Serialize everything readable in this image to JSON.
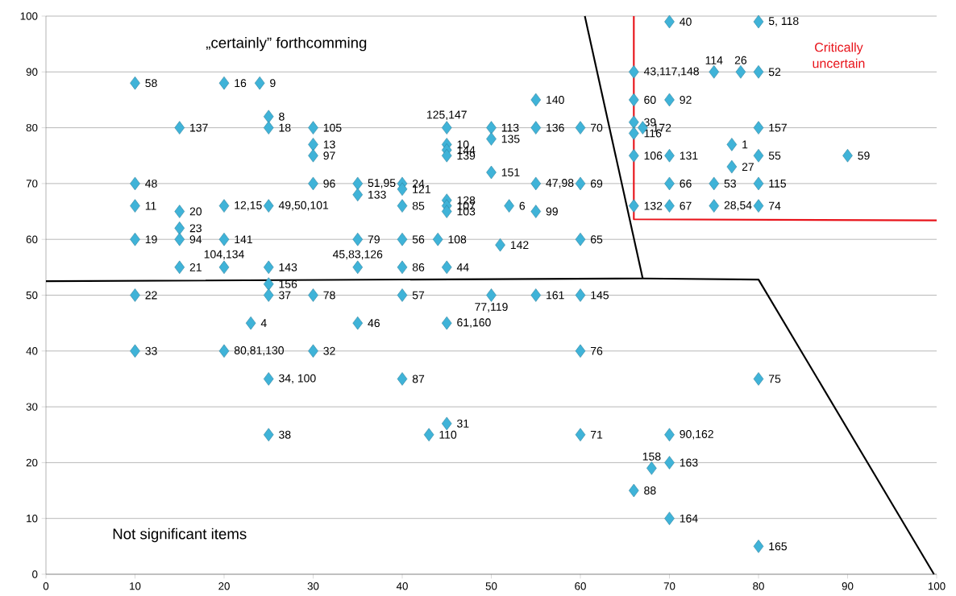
{
  "chart_data": {
    "type": "scatter",
    "xlim": [
      0,
      100
    ],
    "ylim": [
      0,
      100
    ],
    "xticks": [
      0,
      10,
      20,
      30,
      40,
      50,
      60,
      70,
      80,
      90,
      100
    ],
    "yticks": [
      0,
      10,
      20,
      30,
      40,
      50,
      60,
      70,
      80,
      90,
      100
    ],
    "grid": "y",
    "marker": "diamond",
    "series": [
      {
        "color": "#3fb3d8",
        "x": [
          70,
          80,
          66,
          75,
          78,
          80,
          66,
          70,
          66,
          67,
          66,
          80,
          77,
          77,
          66,
          70,
          80,
          90,
          70,
          75,
          80,
          66,
          70,
          75,
          80,
          10,
          20,
          24,
          25,
          25,
          15,
          30,
          30,
          30,
          10,
          30,
          35,
          35,
          40,
          40,
          10,
          15,
          20,
          25,
          15,
          10,
          15,
          20,
          35,
          40,
          44,
          51,
          60,
          15,
          20,
          25,
          25,
          35,
          40,
          45,
          40,
          45,
          45,
          45,
          52,
          55,
          50,
          55,
          60,
          45,
          50,
          50,
          55,
          60,
          55,
          45,
          45,
          45,
          10,
          25,
          30,
          40,
          50,
          55,
          60,
          23,
          35,
          45,
          10,
          20,
          30,
          60,
          25,
          40,
          80,
          45,
          43,
          25,
          60,
          70,
          70,
          68,
          66,
          70,
          80
        ],
        "values": [
          99,
          99,
          90,
          90,
          90,
          90,
          85,
          85,
          81,
          80,
          79,
          80,
          77,
          73,
          75,
          75,
          75,
          75,
          70,
          70,
          70,
          66,
          66,
          66,
          66,
          88,
          88,
          88,
          82,
          80,
          80,
          80,
          77,
          75,
          70,
          70,
          70,
          68,
          70,
          69,
          66,
          65,
          66,
          66,
          62,
          60,
          60,
          60,
          60,
          60,
          60,
          59,
          60,
          55,
          55,
          55,
          52,
          55,
          55,
          55,
          66,
          67,
          66,
          65,
          66,
          65,
          72,
          70,
          70,
          80,
          80,
          78,
          80,
          80,
          85,
          77,
          76,
          75,
          50,
          50,
          50,
          50,
          50,
          50,
          50,
          45,
          45,
          45,
          40,
          40,
          40,
          40,
          35,
          35,
          35,
          27,
          25,
          25,
          25,
          25,
          20,
          19,
          15,
          10,
          5
        ]
      },
      {
        "type": "line",
        "marker": "none",
        "color": "#000000",
        "x": [
          0,
          67,
          80,
          99.7
        ],
        "values": [
          52.5,
          53,
          52.8,
          0
        ]
      },
      {
        "type": "line",
        "marker": "none",
        "color": "#000000",
        "x": [
          60.5,
          67
        ],
        "values": [
          100,
          53
        ]
      },
      {
        "type": "line",
        "marker": "none",
        "color": "#e8141b",
        "x": [
          66,
          66,
          100
        ],
        "values": [
          100,
          63.6,
          63.4
        ]
      }
    ],
    "annotations": [
      "„certainly” forthcomming",
      "Not significant items",
      "Critically uncertain",
      {
        "text": "40",
        "x": 70,
        "y": 99
      },
      {
        "text": "5, 118",
        "x": 80,
        "y": 99
      },
      {
        "text": "43,117,148",
        "x": 66,
        "y": 90
      },
      {
        "text": "114",
        "x": 75,
        "y": 90
      },
      {
        "text": "26",
        "x": 78,
        "y": 90
      },
      {
        "text": "52",
        "x": 80,
        "y": 90
      },
      {
        "text": "60",
        "x": 66,
        "y": 85
      },
      {
        "text": "92",
        "x": 70,
        "y": 85
      },
      {
        "text": "39",
        "x": 66,
        "y": 81
      },
      {
        "text": "172",
        "x": 67,
        "y": 80
      },
      {
        "text": "116",
        "x": 66,
        "y": 79
      },
      {
        "text": "157",
        "x": 80,
        "y": 80
      },
      {
        "text": "1",
        "x": 77,
        "y": 77
      },
      {
        "text": "27",
        "x": 77,
        "y": 73
      },
      {
        "text": "106",
        "x": 66,
        "y": 75
      },
      {
        "text": "131",
        "x": 70,
        "y": 75
      },
      {
        "text": "55",
        "x": 80,
        "y": 75
      },
      {
        "text": "59",
        "x": 90,
        "y": 75
      },
      {
        "text": "66",
        "x": 70,
        "y": 70
      },
      {
        "text": "53",
        "x": 75,
        "y": 70
      },
      {
        "text": "115",
        "x": 80,
        "y": 70
      },
      {
        "text": "132",
        "x": 66,
        "y": 66
      },
      {
        "text": "67",
        "x": 70,
        "y": 66
      },
      {
        "text": "28,54",
        "x": 75,
        "y": 66
      },
      {
        "text": "74",
        "x": 80,
        "y": 66
      },
      {
        "text": "58",
        "x": 10,
        "y": 88
      },
      {
        "text": "16",
        "x": 20,
        "y": 88
      },
      {
        "text": "9",
        "x": 24,
        "y": 88
      },
      {
        "text": "8",
        "x": 25,
        "y": 82
      },
      {
        "text": "18",
        "x": 25,
        "y": 80
      },
      {
        "text": "137",
        "x": 15,
        "y": 80
      },
      {
        "text": "105",
        "x": 30,
        "y": 80
      },
      {
        "text": "13",
        "x": 30,
        "y": 77
      },
      {
        "text": "97",
        "x": 30,
        "y": 75
      },
      {
        "text": "48",
        "x": 10,
        "y": 70
      },
      {
        "text": "96",
        "x": 30,
        "y": 70
      },
      {
        "text": "51,95",
        "x": 35,
        "y": 70
      },
      {
        "text": "133",
        "x": 35,
        "y": 68
      },
      {
        "text": "24",
        "x": 40,
        "y": 70
      },
      {
        "text": "121",
        "x": 40,
        "y": 69
      },
      {
        "text": "11",
        "x": 10,
        "y": 66
      },
      {
        "text": "20",
        "x": 15,
        "y": 65
      },
      {
        "text": "12,15",
        "x": 20,
        "y": 66
      },
      {
        "text": "49,50,101",
        "x": 25,
        "y": 66
      },
      {
        "text": "23",
        "x": 15,
        "y": 62
      },
      {
        "text": "19",
        "x": 10,
        "y": 60
      },
      {
        "text": "94",
        "x": 15,
        "y": 60
      },
      {
        "text": "141",
        "x": 20,
        "y": 60
      },
      {
        "text": "79",
        "x": 35,
        "y": 60
      },
      {
        "text": "56",
        "x": 40,
        "y": 60
      },
      {
        "text": "108",
        "x": 44,
        "y": 60
      },
      {
        "text": "142",
        "x": 51,
        "y": 59
      },
      {
        "text": "65",
        "x": 60,
        "y": 60
      },
      {
        "text": "21",
        "x": 15,
        "y": 55
      },
      {
        "text": "104,134",
        "x": 20,
        "y": 55
      },
      {
        "text": "143",
        "x": 25,
        "y": 55
      },
      {
        "text": "156",
        "x": 25,
        "y": 52
      },
      {
        "text": "45,83,126",
        "x": 35,
        "y": 55
      },
      {
        "text": "86",
        "x": 40,
        "y": 55
      },
      {
        "text": "44",
        "x": 45,
        "y": 55
      },
      {
        "text": "85",
        "x": 40,
        "y": 66
      },
      {
        "text": "128",
        "x": 45,
        "y": 67
      },
      {
        "text": "107",
        "x": 45,
        "y": 66
      },
      {
        "text": "103",
        "x": 45,
        "y": 65
      },
      {
        "text": "6",
        "x": 52,
        "y": 66
      },
      {
        "text": "99",
        "x": 55,
        "y": 65
      },
      {
        "text": "151",
        "x": 50,
        "y": 72
      },
      {
        "text": "47,98",
        "x": 55,
        "y": 70
      },
      {
        "text": "69",
        "x": 60,
        "y": 70
      },
      {
        "text": "125,147",
        "x": 45,
        "y": 80
      },
      {
        "text": "113",
        "x": 50,
        "y": 80
      },
      {
        "text": "135",
        "x": 50,
        "y": 78
      },
      {
        "text": "136",
        "x": 55,
        "y": 80
      },
      {
        "text": "70",
        "x": 60,
        "y": 80
      },
      {
        "text": "140",
        "x": 55,
        "y": 85
      },
      {
        "text": "10",
        "x": 45,
        "y": 77
      },
      {
        "text": "144",
        "x": 45,
        "y": 76
      },
      {
        "text": "139",
        "x": 45,
        "y": 75
      },
      {
        "text": "22",
        "x": 10,
        "y": 50
      },
      {
        "text": "37",
        "x": 25,
        "y": 50
      },
      {
        "text": "78",
        "x": 30,
        "y": 50
      },
      {
        "text": "57",
        "x": 40,
        "y": 50
      },
      {
        "text": "77,119",
        "x": 50,
        "y": 50
      },
      {
        "text": "161",
        "x": 55,
        "y": 50
      },
      {
        "text": "145",
        "x": 60,
        "y": 50
      },
      {
        "text": "4",
        "x": 23,
        "y": 45
      },
      {
        "text": "46",
        "x": 35,
        "y": 45
      },
      {
        "text": "61,160",
        "x": 45,
        "y": 45
      },
      {
        "text": "33",
        "x": 10,
        "y": 40
      },
      {
        "text": "80,81,130",
        "x": 20,
        "y": 40
      },
      {
        "text": "32",
        "x": 30,
        "y": 40
      },
      {
        "text": "76",
        "x": 60,
        "y": 40
      },
      {
        "text": "34, 100",
        "x": 25,
        "y": 35
      },
      {
        "text": "87",
        "x": 40,
        "y": 35
      },
      {
        "text": "75",
        "x": 80,
        "y": 35
      },
      {
        "text": "31",
        "x": 45,
        "y": 27
      },
      {
        "text": "110",
        "x": 43,
        "y": 25
      },
      {
        "text": "38",
        "x": 25,
        "y": 25
      },
      {
        "text": "71",
        "x": 60,
        "y": 25
      },
      {
        "text": "90,162",
        "x": 70,
        "y": 25
      },
      {
        "text": "163",
        "x": 70,
        "y": 20
      },
      {
        "text": "158",
        "x": 68,
        "y": 19
      },
      {
        "text": "88",
        "x": 66,
        "y": 15
      },
      {
        "text": "164",
        "x": 70,
        "y": 10
      },
      {
        "text": "165",
        "x": 80,
        "y": 5
      }
    ]
  }
}
